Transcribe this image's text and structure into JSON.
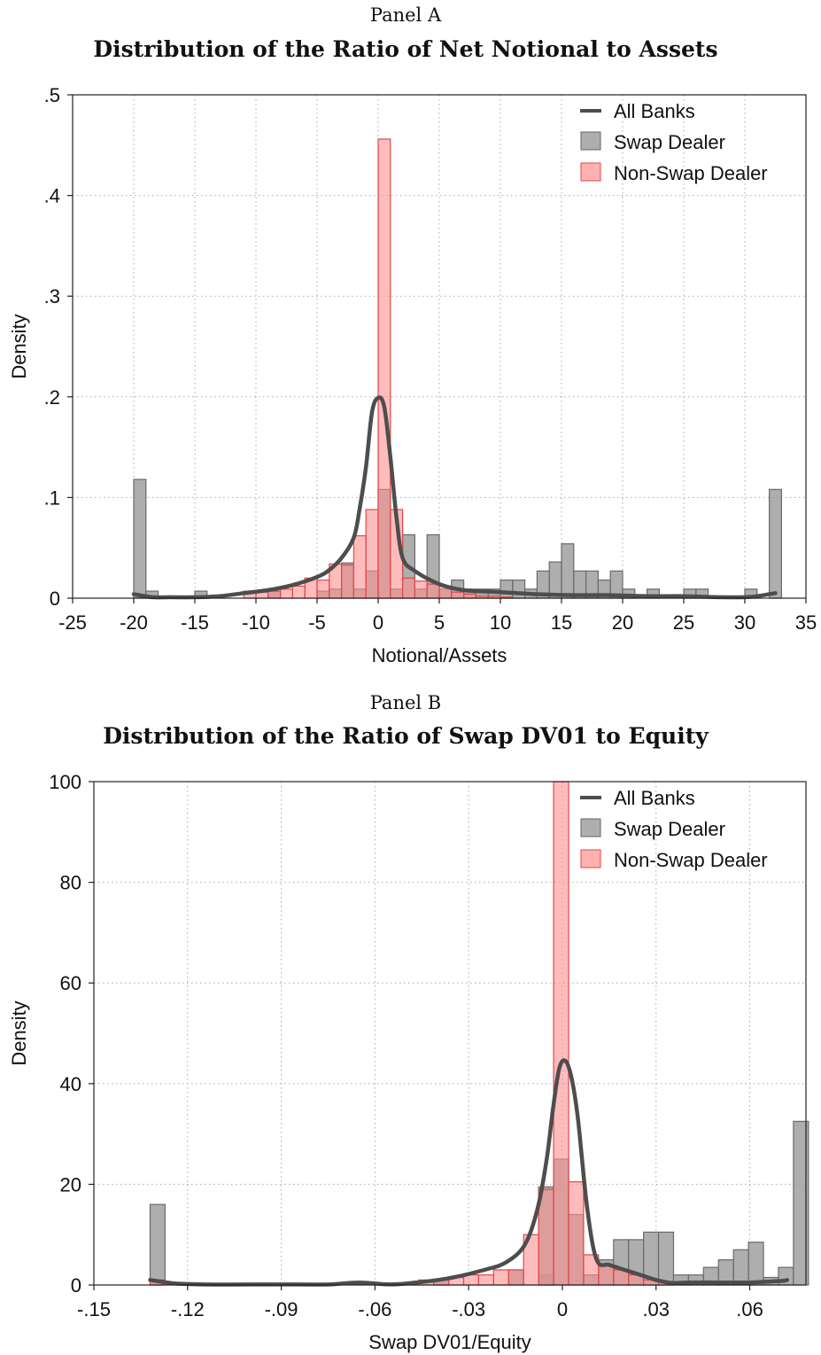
{
  "chart_data": [
    {
      "type": "histogram-density",
      "panel_label": "Panel A",
      "title": "Distribution of the Ratio of Net Notional to Assets",
      "xlabel": "Notional/Assets",
      "ylabel": "Density",
      "xlim": [
        -25,
        35
      ],
      "ylim": [
        0,
        0.5
      ],
      "x_ticks": [
        "-25",
        "-20",
        "-15",
        "-10",
        "-5",
        "0",
        "5",
        "10",
        "15",
        "20",
        "25",
        "30",
        "35"
      ],
      "y_ticks": [
        "0",
        ".1",
        ".2",
        ".3",
        ".4",
        ".5"
      ],
      "grid": true,
      "legend_position": "top-right",
      "legend": [
        "All Banks",
        "Swap Dealer",
        "Non-Swap Dealer"
      ],
      "bin_width": 1,
      "series": [
        {
          "name": "Swap Dealer",
          "kind": "histogram",
          "color": "#9a9a9a",
          "bins": [
            [
              -20,
              0.118
            ],
            [
              -19,
              0.007
            ],
            [
              -15,
              0.007
            ],
            [
              -9,
              0.007
            ],
            [
              -5,
              0.007
            ],
            [
              -4,
              0.009
            ],
            [
              -3,
              0.035
            ],
            [
              -2,
              0.009
            ],
            [
              -1,
              0.027
            ],
            [
              0,
              0.108
            ],
            [
              1,
              0.009
            ],
            [
              2,
              0.063
            ],
            [
              3,
              0.009
            ],
            [
              4,
              0.063
            ],
            [
              5,
              0.009
            ],
            [
              6,
              0.018
            ],
            [
              7,
              0.009
            ],
            [
              8,
              0.009
            ],
            [
              9,
              0.009
            ],
            [
              10,
              0.018
            ],
            [
              11,
              0.018
            ],
            [
              12,
              0.009
            ],
            [
              13,
              0.027
            ],
            [
              14,
              0.036
            ],
            [
              15,
              0.054
            ],
            [
              16,
              0.027
            ],
            [
              17,
              0.027
            ],
            [
              18,
              0.018
            ],
            [
              19,
              0.027
            ],
            [
              20,
              0.009
            ],
            [
              22,
              0.009
            ],
            [
              25,
              0.009
            ],
            [
              26,
              0.009
            ],
            [
              30,
              0.009
            ],
            [
              32,
              0.108
            ]
          ]
        },
        {
          "name": "Non-Swap Dealer",
          "kind": "histogram",
          "color": "#ff8f8f",
          "bins": [
            [
              -11,
              0.007
            ],
            [
              -10,
              0.006
            ],
            [
              -9,
              0.007
            ],
            [
              -8,
              0.009
            ],
            [
              -7,
              0.012
            ],
            [
              -6,
              0.02
            ],
            [
              -5,
              0.018
            ],
            [
              -4,
              0.034
            ],
            [
              -3,
              0.033
            ],
            [
              -2,
              0.062
            ],
            [
              -1,
              0.088
            ],
            [
              0,
              0.456
            ],
            [
              1,
              0.088
            ],
            [
              2,
              0.02
            ],
            [
              3,
              0.017
            ],
            [
              4,
              0.014
            ],
            [
              5,
              0.012
            ],
            [
              6,
              0.006
            ],
            [
              7,
              0.004
            ],
            [
              8,
              0.002
            ],
            [
              9,
              0.002
            ],
            [
              10,
              0.001
            ]
          ]
        },
        {
          "name": "All Banks",
          "kind": "kde",
          "color": "#4d4d4d",
          "x": [
            -20,
            -18.5,
            -17,
            -15,
            -13,
            -11,
            -9,
            -7,
            -5,
            -4,
            -3,
            -2,
            -1.5,
            -1,
            -0.5,
            0,
            0.5,
            1,
            1.5,
            2,
            3,
            5,
            7,
            10,
            13,
            16,
            19,
            22,
            25,
            28,
            30,
            31,
            32.5
          ],
          "y": [
            0.004,
            0.001,
            0.001,
            0.001,
            0.002,
            0.005,
            0.008,
            0.013,
            0.021,
            0.028,
            0.04,
            0.06,
            0.09,
            0.13,
            0.185,
            0.199,
            0.19,
            0.14,
            0.08,
            0.04,
            0.027,
            0.014,
            0.008,
            0.006,
            0.004,
            0.003,
            0.003,
            0.002,
            0.002,
            0.001,
            0.001,
            0.002,
            0.005
          ]
        }
      ]
    },
    {
      "type": "histogram-density",
      "panel_label": "Panel B",
      "title": "Distribution of the Ratio of Swap DV01 to Equity",
      "xlabel": "Swap DV01/Equity",
      "ylabel": "Density",
      "xlim": [
        -0.15,
        0.078
      ],
      "ylim": [
        0,
        100
      ],
      "x_ticks": [
        "-.15",
        "-.12",
        "-.09",
        "-.06",
        "-.03",
        "0",
        ".03",
        ".06"
      ],
      "y_ticks": [
        "0",
        "20",
        "40",
        "60",
        "80",
        "100"
      ],
      "grid": true,
      "legend_position": "top-right",
      "legend": [
        "All Banks",
        "Swap Dealer",
        "Non-Swap Dealer"
      ],
      "bin_width": 0.0048,
      "series": [
        {
          "name": "Swap Dealer",
          "kind": "histogram",
          "color": "#9a9a9a",
          "bins": [
            [
              -0.132,
              16
            ],
            [
              -0.0412,
              1
            ],
            [
              -0.0172,
              3
            ],
            [
              -0.0076,
              2
            ],
            [
              -0.0076,
              19.5
            ],
            [
              -0.0028,
              25
            ],
            [
              0.002,
              14
            ],
            [
              0.0068,
              2
            ],
            [
              0.0116,
              5
            ],
            [
              0.0164,
              9
            ],
            [
              0.0212,
              9
            ],
            [
              0.026,
              10.5
            ],
            [
              0.0308,
              10.5
            ],
            [
              0.0356,
              2
            ],
            [
              0.0404,
              2
            ],
            [
              0.0452,
              3.5
            ],
            [
              0.05,
              5
            ],
            [
              0.0548,
              7
            ],
            [
              0.0596,
              8.5
            ],
            [
              0.0644,
              1.5
            ],
            [
              0.0692,
              3.5
            ],
            [
              0.074,
              32.5
            ]
          ]
        },
        {
          "name": "Non-Swap Dealer",
          "kind": "histogram",
          "color": "#ff8f8f",
          "bins": [
            [
              -0.132,
              1
            ],
            [
              -0.0508,
              0.5
            ],
            [
              -0.046,
              1
            ],
            [
              -0.0412,
              1
            ],
            [
              -0.0364,
              1.5
            ],
            [
              -0.0316,
              2
            ],
            [
              -0.0268,
              2
            ],
            [
              -0.022,
              3
            ],
            [
              -0.0172,
              3
            ],
            [
              -0.0124,
              10
            ],
            [
              -0.0076,
              19
            ],
            [
              -0.0028,
              100
            ],
            [
              0.002,
              20.5
            ],
            [
              0.0068,
              6
            ],
            [
              0.0116,
              4
            ],
            [
              0.0164,
              3
            ],
            [
              0.0212,
              2
            ],
            [
              0.026,
              1
            ],
            [
              0.0308,
              0.5
            ]
          ]
        },
        {
          "name": "All Banks",
          "kind": "kde",
          "color": "#4d4d4d",
          "x": [
            -0.132,
            -0.124,
            -0.115,
            -0.1,
            -0.085,
            -0.075,
            -0.065,
            -0.055,
            -0.045,
            -0.035,
            -0.025,
            -0.018,
            -0.012,
            -0.008,
            -0.005,
            -0.003,
            -0.001,
            0.001,
            0.003,
            0.005,
            0.008,
            0.011,
            0.015,
            0.02,
            0.025,
            0.03,
            0.035,
            0.04,
            0.05,
            0.06,
            0.07,
            0.072
          ],
          "y": [
            1,
            0.3,
            0.1,
            0.1,
            0.1,
            0.1,
            0.5,
            0.1,
            0.6,
            1.5,
            3,
            4.5,
            8,
            15,
            25,
            35,
            43,
            44.5,
            41,
            33,
            15,
            5,
            4,
            3,
            2,
            1,
            0.4,
            0.5,
            0.5,
            0.5,
            0.8,
            1
          ]
        }
      ]
    }
  ]
}
